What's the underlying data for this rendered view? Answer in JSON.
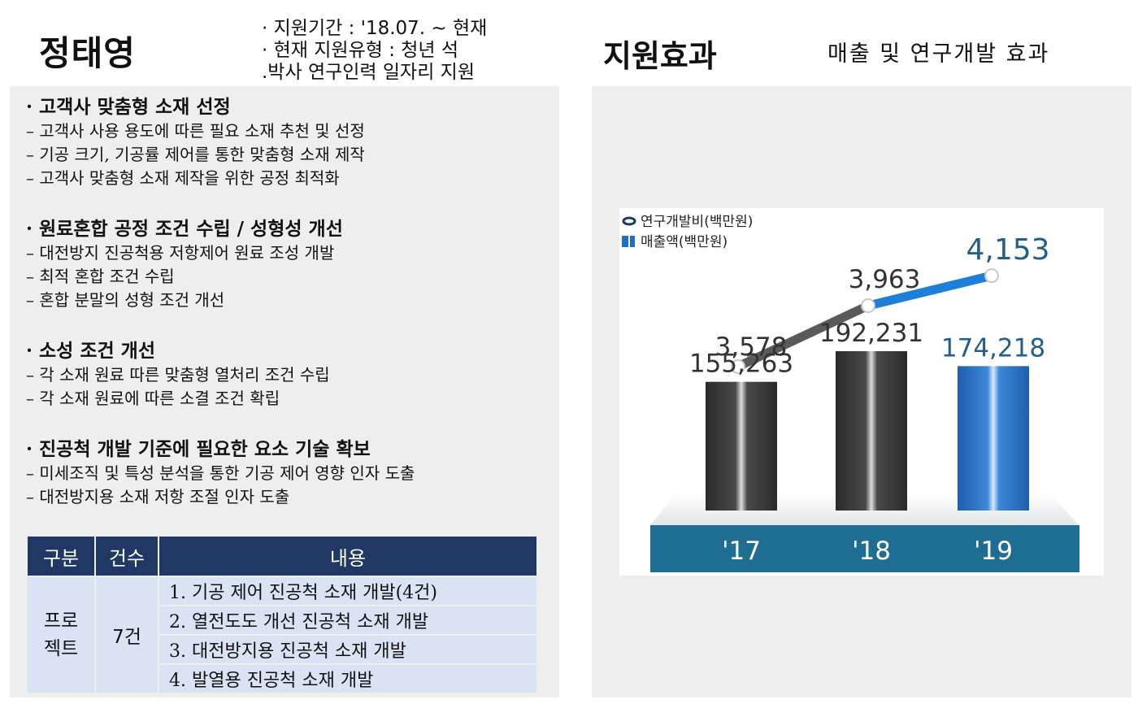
{
  "header": {
    "name": "정태영",
    "support_period": "· 지원기간 : '18.07. ~ 현재",
    "support_type_1": "· 현재 지원유형 : 청년 석",
    "support_type_2": " .박사 연구인력 일자리 지원",
    "effect_title": "지원효과",
    "effect_subtitle": "매출 및 연구개발 효과"
  },
  "sections": [
    {
      "title": "· 고객사 맞춤형 소재 선정",
      "items": [
        "– 고객사 사용 용도에 따른 필요 소재 추천 및 선정",
        "– 기공 크기, 기공률 제어를 통한 맞춤형 소재 제작",
        "– 고객사 맞춤형 소재 제작을 위한 공정 최적화"
      ]
    },
    {
      "title": "· 원료혼합 공정 조건 수립 / 성형성 개선",
      "items": [
        "– 대전방지 진공척용 저항제어 원료 조성 개발",
        "– 최적 혼합 조건 수립",
        "– 혼합 분말의 성형 조건 개선"
      ]
    },
    {
      "title": "· 소성 조건 개선",
      "items": [
        "– 각 소재 원료 따른 맞춤형 열처리 조건 수립",
        "– 각 소재 원료에 따른 소결 조건 확립"
      ]
    },
    {
      "title": "· 진공척 개발 기준에 필요한 요소 기술 확보",
      "items": [
        "– 미세조직 및 특성 분석을 통한 기공 제어 영향 인자 도출",
        "– 대전방지용 소재 저항 조절 인자 도출"
      ]
    }
  ],
  "table": {
    "headers": [
      "구분",
      "건수",
      "내용"
    ],
    "category_line1": "프로",
    "category_line2": "젝트",
    "count": "7건",
    "rows": [
      "1. 기공 제어 진공척 소재 개발(4건)",
      "2. 열전도도 개선 진공척 소재 개발",
      "3. 대전방지용 진공척 소재 개발",
      "4. 발열용 진공척 소재 개발"
    ],
    "header_color": "#1f3864",
    "cell_color": "#dae3f3"
  },
  "chart_data": {
    "type": "bar",
    "categories": [
      "'17",
      "'18",
      "'19"
    ],
    "series": [
      {
        "name": "매출액(백만원)",
        "kind": "bar",
        "values": [
          155263,
          192231,
          174218
        ],
        "labels": [
          "155,263",
          "192,231",
          "174,218"
        ]
      },
      {
        "name": "연구개발비(백만원)",
        "kind": "line",
        "values": [
          3578,
          3963,
          4153
        ],
        "labels": [
          "3,578",
          "3,963",
          "4,153"
        ]
      }
    ],
    "legend": [
      "연구개발비(백만원)",
      "매출액(백만원)"
    ],
    "legend_position": "top-left",
    "colors": {
      "bar_dark": "#3c3c3c",
      "bar_highlight": "#2e75d0",
      "label_highlight": "#1f5f8b",
      "base": "#1e6e94"
    }
  }
}
